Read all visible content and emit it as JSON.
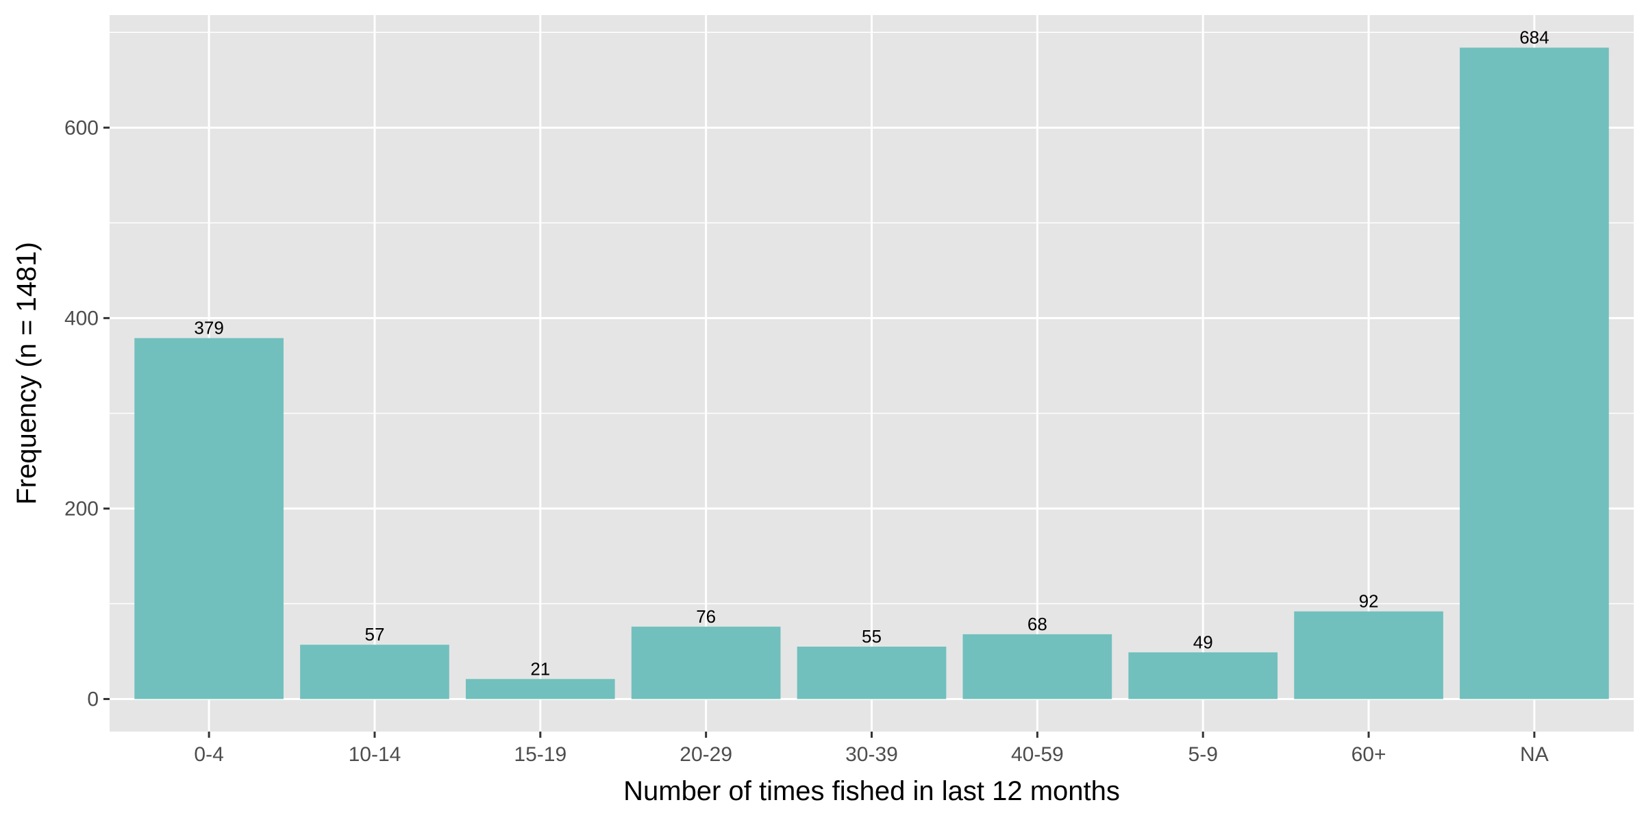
{
  "chart_data": {
    "type": "bar",
    "categories": [
      "0-4",
      "10-14",
      "15-19",
      "20-29",
      "30-39",
      "40-59",
      "5-9",
      "60+",
      "NA"
    ],
    "values": [
      379,
      57,
      21,
      76,
      55,
      68,
      49,
      92,
      684
    ],
    "data_labels": [
      "379",
      "57",
      "21",
      "76",
      "55",
      "68",
      "49",
      "92",
      "684"
    ],
    "title": "",
    "xlabel": "Number of times fished in last 12 months",
    "ylabel": "Frequency (n = 1481)",
    "ylim": [
      -34.2,
      718.2
    ],
    "yticks": [
      0,
      200,
      400,
      600
    ],
    "ytick_labels": [
      "0",
      "200",
      "400",
      "600"
    ],
    "ygrid_minor": [
      100,
      300,
      500,
      700
    ],
    "grid": true,
    "legend": "none",
    "colors": {
      "bar": "#71C0BD",
      "panel": "#E5E5E5",
      "grid": "#FFFFFF",
      "tick_text": "#4D4D4D",
      "title_text": "#000000"
    }
  }
}
